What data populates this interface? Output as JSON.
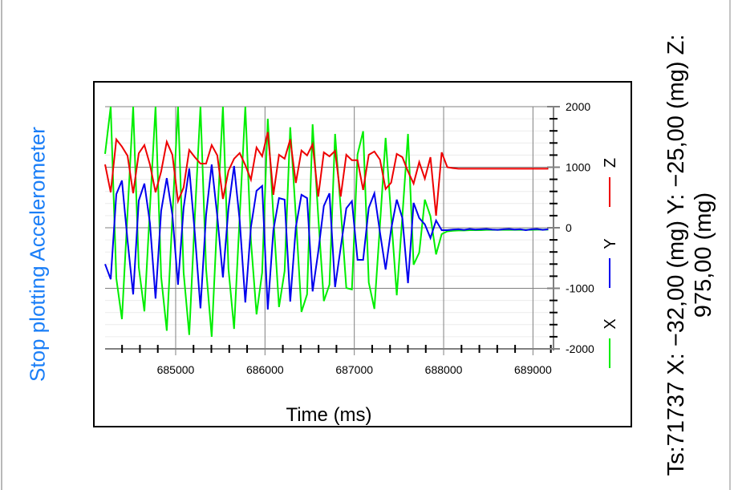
{
  "controls": {
    "stop_button_label": "Stop plotting Accelerometer"
  },
  "readout": {
    "text": "Ts:71737 X: −32,00 (mg) Y: −25,00 (mg) Z:  975,00 (mg)"
  },
  "colors": {
    "accent": "#1a7ef7",
    "x_series": "#00ee00",
    "y_series": "#0000ee",
    "z_series": "#ee0000"
  },
  "chart_data": {
    "type": "line",
    "title": "",
    "xlabel": "Time (ms)",
    "ylabel": "",
    "xlim": [
      684210,
      689230
    ],
    "ylim": [
      -2000,
      2000
    ],
    "x_ticks": [
      685000,
      686000,
      687000,
      688000,
      689000
    ],
    "x_tick_labels": [
      "685000",
      "686000",
      "687000",
      "688000",
      "689000"
    ],
    "y_ticks": [
      2000,
      1000,
      0,
      -1000,
      -2000
    ],
    "y_tick_labels": [
      "2000",
      "1000",
      "0",
      "-1000",
      "-2000"
    ],
    "y_axis_side": "right",
    "grid": true,
    "legend_position": "right",
    "x_start": 684210,
    "x_step": 62.8,
    "series": [
      {
        "name": "Z",
        "color": "#ee0000",
        "values": [
          1045,
          585,
          1460,
          1340,
          1190,
          570,
          1230,
          1365,
          1045,
          585,
          930,
          1420,
          1205,
          440,
          665,
          1285,
          1165,
          1060,
          1060,
          1365,
          1195,
          475,
          940,
          1140,
          1235,
          1035,
          795,
          1325,
          1180,
          1580,
          545,
          1205,
          1140,
          1460,
          740,
          1275,
          1195,
          1380,
          515,
          1245,
          1180,
          1270,
          515,
          1205,
          1115,
          1115,
          625,
          1205,
          1260,
          1125,
          640,
          745,
          1220,
          1165,
          930,
          730,
          1085,
          810,
          1165,
          200,
          1245,
          1000,
          985,
          975,
          975,
          975,
          975,
          975,
          975,
          975,
          975,
          975,
          975,
          975,
          975,
          975,
          975,
          975,
          975,
          975
        ]
      },
      {
        "name": "Y",
        "color": "#0000ee",
        "values": [
          -600,
          -850,
          555,
          780,
          -210,
          -1100,
          450,
          730,
          80,
          -1170,
          280,
          820,
          210,
          -940,
          330,
          980,
          -95,
          -1330,
          210,
          1045,
          185,
          -820,
          320,
          1020,
          120,
          -1235,
          10,
          610,
          690,
          -1350,
          -40,
          490,
          465,
          -1220,
          10,
          545,
          490,
          -1050,
          -400,
          360,
          570,
          -980,
          -330,
          320,
          440,
          -530,
          -530,
          330,
          570,
          -80,
          -690,
          -25,
          465,
          160,
          -915,
          410,
          160,
          55,
          -170,
          120,
          -40,
          -40,
          -30,
          -25,
          -35,
          -20,
          -30,
          -25,
          -20,
          -30,
          -35,
          -25,
          -20,
          -30,
          -25,
          -40,
          -25,
          -20,
          -35,
          -25
        ]
      },
      {
        "name": "X",
        "color": "#00ee00",
        "values": [
          1220,
          2000,
          -835,
          -1510,
          250,
          2000,
          -650,
          -1380,
          320,
          2000,
          -810,
          -1700,
          190,
          2000,
          -740,
          -1770,
          190,
          2000,
          -675,
          -1800,
          190,
          2000,
          -675,
          -1670,
          190,
          2000,
          -210,
          -1430,
          -740,
          1800,
          190,
          -1310,
          -715,
          1660,
          190,
          -1390,
          -1100,
          1710,
          190,
          -1210,
          -940,
          1550,
          320,
          -995,
          -1020,
          1210,
          1595,
          -905,
          -1340,
          50,
          1485,
          190,
          -1115,
          190,
          1550,
          -610,
          -410,
          465,
          190,
          -440,
          -105,
          -60,
          -50,
          -45,
          -45,
          -40,
          -40,
          -40,
          -35,
          -35,
          -35,
          -35,
          -35,
          -35,
          -35,
          -35,
          -35,
          -32,
          -32,
          -32
        ]
      }
    ]
  }
}
